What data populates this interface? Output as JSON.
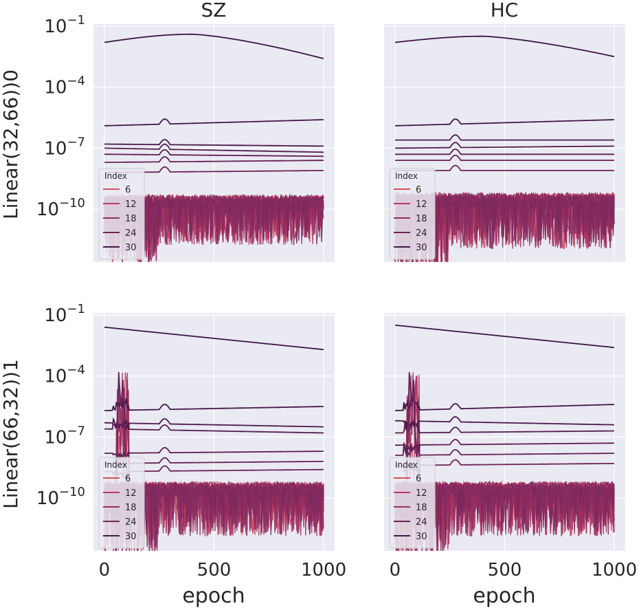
{
  "chart_data": {
    "type": "line",
    "layout": "facet-grid",
    "col_titles": [
      "SZ",
      "HC"
    ],
    "row_labels": [
      "Linear(32,66))0",
      "Linear(66,32))1"
    ],
    "xlabel": "epoch",
    "x_ticks": [
      0,
      500,
      1000
    ],
    "xlim": [
      -50,
      1050
    ],
    "y_scale": "log",
    "y_tick_exponents": [
      -1,
      -4,
      -7,
      -10
    ],
    "y_tick_base": "10",
    "ylim_exponent": [
      -12.6,
      -0.9
    ],
    "legend": {
      "title": "Index",
      "entries": [
        "6",
        "12",
        "18",
        "24",
        "30"
      ],
      "placement": "lower-left"
    },
    "series_count": 32,
    "panels": [
      {
        "row": 0,
        "col": 0,
        "stable_lines_exponent": [
          {
            "start": -1.8,
            "peak": -1.4,
            "end": -2.6
          },
          {
            "start": -5.9,
            "end": -5.6
          },
          {
            "start": -6.8,
            "end": -6.9
          },
          {
            "start": -7.0,
            "end": -7.2
          },
          {
            "start": -7.3,
            "end": -7.4
          },
          {
            "start": -7.7,
            "end": -7.6
          },
          {
            "start": -8.2,
            "end": -8.1
          }
        ],
        "noisy_band_exponent": [
          -9.2,
          -12.3
        ]
      },
      {
        "row": 0,
        "col": 1,
        "stable_lines_exponent": [
          {
            "start": -1.8,
            "peak": -1.5,
            "end": -2.5
          },
          {
            "start": -5.9,
            "end": -5.6
          },
          {
            "start": -6.6,
            "end": -6.6
          },
          {
            "start": -7.0,
            "end": -6.9
          },
          {
            "start": -7.3,
            "end": -7.3
          },
          {
            "start": -7.6,
            "end": -7.6
          },
          {
            "start": -8.1,
            "end": -8.1
          }
        ],
        "noisy_band_exponent": [
          -9.1,
          -12.6
        ]
      },
      {
        "row": 1,
        "col": 0,
        "stable_lines_exponent": [
          {
            "start": -1.6,
            "end": -2.7
          },
          {
            "start": -5.7,
            "end": -5.5
          },
          {
            "start": -6.3,
            "end": -6.5
          },
          {
            "start": -6.6,
            "end": -6.8
          },
          {
            "start": -7.8,
            "end": -7.7
          },
          {
            "start": -8.3,
            "end": -8.2
          },
          {
            "start": -8.7,
            "end": -8.6
          }
        ],
        "noisy_band_exponent": [
          -9.1,
          -12.5
        ],
        "early_spike_exponent": -3.8
      },
      {
        "row": 1,
        "col": 1,
        "stable_lines_exponent": [
          {
            "start": -1.5,
            "end": -2.6
          },
          {
            "start": -5.7,
            "end": -5.4
          },
          {
            "start": -6.2,
            "end": -6.4
          },
          {
            "start": -6.8,
            "end": -6.7
          },
          {
            "start": -7.4,
            "end": -7.3
          },
          {
            "start": -7.9,
            "end": -7.8
          },
          {
            "start": -8.4,
            "end": -8.3
          }
        ],
        "noisy_band_exponent": [
          -9.1,
          -12.5
        ],
        "early_spike_exponent": -3.8
      }
    ]
  }
}
